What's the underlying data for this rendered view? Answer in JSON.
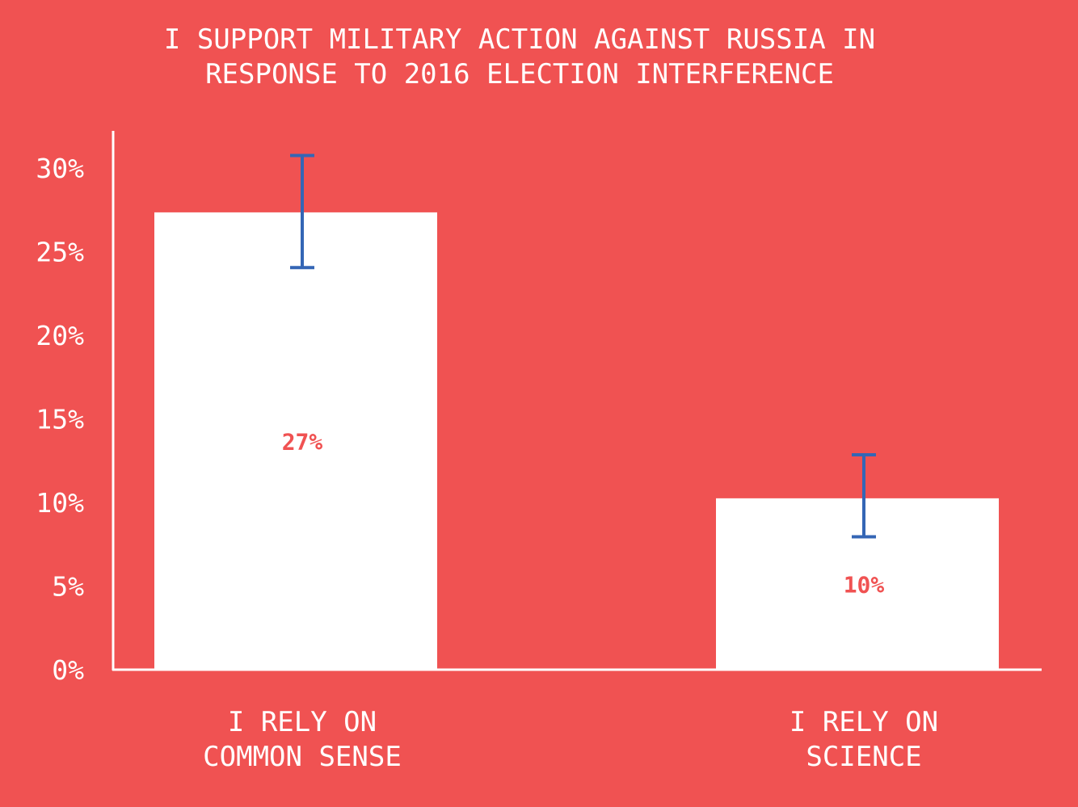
{
  "chart_data": {
    "type": "bar",
    "title_lines": [
      "I SUPPORT MILITARY ACTION AGAINST RUSSIA IN",
      "RESPONSE TO 2016 ELECTION INTERFERENCE"
    ],
    "categories": [
      [
        "I RELY ON",
        "COMMON SENSE"
      ],
      [
        "I RELY ON",
        "SCIENCE"
      ]
    ],
    "values": [
      27.3,
      10.2
    ],
    "data_labels": [
      "27%",
      "10%"
    ],
    "error_bars": [
      [
        24.0,
        30.7
      ],
      [
        7.9,
        12.8
      ]
    ],
    "ylim": [
      0,
      30
    ],
    "yticks": [
      0,
      5,
      10,
      15,
      20,
      25,
      30
    ],
    "ytick_labels": [
      "0%",
      "5%",
      "10%",
      "15%",
      "20%",
      "25%",
      "30%"
    ],
    "grid": false,
    "colors": {
      "background": "#F05252",
      "bar": "#FFFFFF",
      "error_bar": "#3466B5",
      "data_label": "#F05252",
      "text": "#FFFFFF"
    }
  }
}
